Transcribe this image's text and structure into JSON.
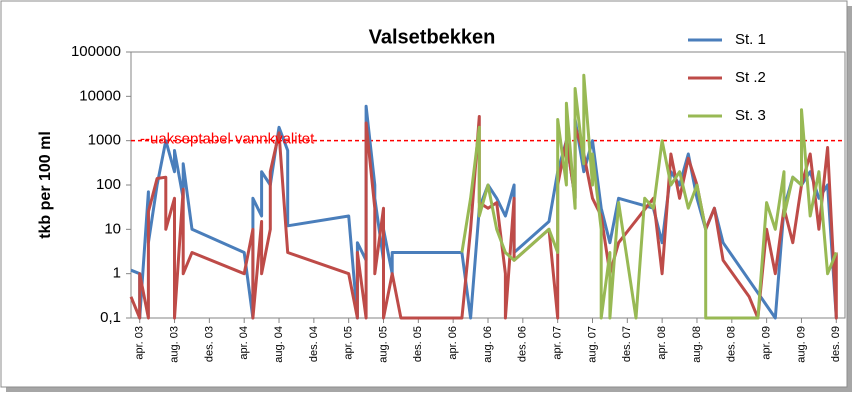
{
  "chart_data": {
    "type": "line",
    "title": "Valsetbekken",
    "y_label": "tkb per 100 ml",
    "log_scale": true,
    "ylim": [
      0.1,
      100000
    ],
    "yticks": [
      {
        "value": 0.1,
        "label": "0,1"
      },
      1,
      10,
      100,
      1000,
      10000,
      100000
    ],
    "xlim": [
      "2003-03",
      "2010-01"
    ],
    "xticks": [
      {
        "value": "2003-04",
        "label": "apr. 03"
      },
      {
        "value": "2003-08",
        "label": "aug. 03"
      },
      {
        "value": "2003-12",
        "label": "des. 03"
      },
      {
        "value": "2004-04",
        "label": "apr. 04"
      },
      {
        "value": "2004-08",
        "label": "aug. 04"
      },
      {
        "value": "2004-12",
        "label": "des. 04"
      },
      {
        "value": "2005-04",
        "label": "apr. 05"
      },
      {
        "value": "2005-08",
        "label": "aug. 05"
      },
      {
        "value": "2005-12",
        "label": "des. 05"
      },
      {
        "value": "2006-04",
        "label": "apr. 06"
      },
      {
        "value": "2006-08",
        "label": "aug. 06"
      },
      {
        "value": "2006-12",
        "label": "des. 06"
      },
      {
        "value": "2007-04",
        "label": "apr. 07"
      },
      {
        "value": "2007-08",
        "label": "aug. 07"
      },
      {
        "value": "2007-12",
        "label": "des. 07"
      },
      {
        "value": "2008-04",
        "label": "apr. 08"
      },
      {
        "value": "2008-08",
        "label": "aug. 08"
      },
      {
        "value": "2008-12",
        "label": "des. 08"
      },
      {
        "value": "2009-04",
        "label": "apr. 09"
      },
      {
        "value": "2009-08",
        "label": "aug. 09"
      },
      {
        "value": "2009-12",
        "label": "des. 09"
      }
    ],
    "threshold": {
      "label": "--uakseptabel vannkvalitet",
      "value": 1000,
      "color": "#ff0000"
    },
    "series": [
      {
        "name": "St. 1",
        "color": "#4a7ebb",
        "x": [
          "2003-03",
          "2003-04",
          "2003-04",
          "2003-05",
          "2003-05",
          "2003-06",
          "2003-07",
          "2003-08",
          "2003-08",
          "2003-09",
          "2003-09",
          "2003-10",
          "2004-04",
          "2004-05",
          "2004-05",
          "2004-06",
          "2004-06",
          "2004-07",
          "2004-08",
          "2004-09",
          "2004-09",
          "2005-04",
          "2005-05",
          "2005-05",
          "2005-06",
          "2005-06",
          "2005-07",
          "2005-07",
          "2005-08",
          "2005-08",
          "2005-09",
          "2005-09",
          "2006-05",
          "2006-06",
          "2006-07",
          "2006-08",
          "2006-09",
          "2006-10",
          "2006-11",
          "2006-11",
          "2007-03",
          "2007-04",
          "2007-05",
          "2007-06",
          "2007-06",
          "2007-07",
          "2007-08",
          "2007-09",
          "2007-10",
          "2007-11",
          "2008-03",
          "2008-04",
          "2008-05",
          "2008-06",
          "2008-07",
          "2008-08",
          "2008-09",
          "2008-10",
          "2008-11",
          "2009-05",
          "2009-06",
          "2009-07",
          "2009-08",
          "2009-09",
          "2009-10",
          "2009-11",
          "2009-12"
        ],
        "values": [
          1.2,
          1,
          0.1,
          70,
          5,
          100,
          1000,
          200,
          600,
          50,
          300,
          10,
          3,
          0.1,
          50,
          20,
          200,
          100,
          2000,
          600,
          12,
          20,
          0.1,
          5,
          2,
          6000,
          100,
          50,
          2,
          10,
          1,
          3,
          3,
          0.1,
          30,
          100,
          50,
          20,
          100,
          3,
          15,
          200,
          1000,
          50,
          3000,
          200,
          1000,
          30,
          5,
          50,
          30,
          5,
          200,
          100,
          500,
          50,
          10,
          30,
          5,
          0.1,
          30,
          150,
          100,
          200,
          50,
          100,
          0.1
        ]
      },
      {
        "name": "St .2",
        "color": "#be4b48",
        "x": [
          "2003-03",
          "2003-04",
          "2003-04",
          "2003-05",
          "2003-05",
          "2003-06",
          "2003-07",
          "2003-07",
          "2003-08",
          "2003-08",
          "2003-09",
          "2003-09",
          "2003-10",
          "2004-04",
          "2004-05",
          "2004-05",
          "2004-06",
          "2004-06",
          "2004-07",
          "2004-07",
          "2004-08",
          "2004-09",
          "2005-04",
          "2005-05",
          "2005-05",
          "2005-06",
          "2005-06",
          "2005-07",
          "2005-07",
          "2005-08",
          "2005-08",
          "2005-09",
          "2005-10",
          "2006-05",
          "2006-06",
          "2006-07",
          "2006-07",
          "2006-08",
          "2006-09",
          "2006-10",
          "2006-10",
          "2006-11",
          "2006-11",
          "2007-03",
          "2007-04",
          "2007-04",
          "2007-05",
          "2007-06",
          "2007-06",
          "2007-07",
          "2007-08",
          "2007-09",
          "2007-10",
          "2007-11",
          "2008-03",
          "2008-04",
          "2008-05",
          "2008-06",
          "2008-07",
          "2008-08",
          "2008-09",
          "2008-10",
          "2008-11",
          "2009-02",
          "2009-03",
          "2009-04",
          "2009-05",
          "2009-06",
          "2009-07",
          "2009-08",
          "2009-09",
          "2009-10",
          "2009-11",
          "2009-12",
          "2009-12"
        ],
        "values": [
          0.3,
          0.1,
          1,
          0.1,
          25,
          140,
          150,
          10,
          50,
          0.1,
          80,
          1,
          3,
          1,
          10,
          0.1,
          15,
          1,
          10,
          200,
          1500,
          3,
          1,
          0.1,
          3,
          0.1,
          2500,
          30,
          1,
          30,
          0.1,
          1,
          0.1,
          0.1,
          10,
          3500,
          40,
          30,
          40,
          1,
          0.1,
          50,
          2,
          10,
          0.1,
          100,
          1000,
          50,
          2000,
          500,
          50,
          20,
          1,
          5,
          50,
          1,
          500,
          50,
          400,
          100,
          10,
          30,
          2,
          0.3,
          0.1,
          10,
          1,
          30,
          5,
          100,
          500,
          10,
          700,
          0.1,
          3
        ]
      },
      {
        "name": "St. 3",
        "color": "#98b954",
        "x": [
          "2006-05",
          "2006-06",
          "2006-07",
          "2006-07",
          "2006-08",
          "2006-09",
          "2006-10",
          "2006-11",
          "2007-03",
          "2007-04",
          "2007-04",
          "2007-05",
          "2007-05",
          "2007-06",
          "2007-06",
          "2007-07",
          "2007-07",
          "2007-08",
          "2007-08",
          "2007-09",
          "2007-09",
          "2007-10",
          "2007-10",
          "2007-11",
          "2008-01",
          "2008-02",
          "2008-03",
          "2008-04",
          "2008-05",
          "2008-06",
          "2008-07",
          "2008-08",
          "2008-09",
          "2008-09",
          "2008-10",
          "2009-03",
          "2009-04",
          "2009-05",
          "2009-06",
          "2009-06",
          "2009-07",
          "2009-08",
          "2009-08",
          "2009-09",
          "2009-10",
          "2009-11",
          "2009-12"
        ],
        "values": [
          3,
          50,
          2000,
          20,
          100,
          10,
          3,
          2,
          10,
          3,
          3000,
          100,
          7000,
          30,
          15000,
          300,
          30000,
          100,
          500,
          10,
          0.1,
          3,
          0.1,
          40,
          0.1,
          50,
          30,
          1000,
          100,
          200,
          30,
          100,
          10,
          0.1,
          0.1,
          0.1,
          40,
          10,
          200,
          20,
          150,
          100,
          5000,
          20,
          200,
          1,
          3
        ]
      }
    ]
  }
}
